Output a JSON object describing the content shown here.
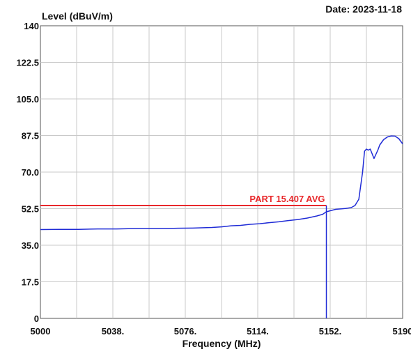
{
  "chart_data": {
    "type": "line",
    "title": "",
    "date_label": "Date: 2023-11-18",
    "ylabel": "Level (dBuV/m)",
    "xlabel": "Frequency (MHz)",
    "xlim": [
      5000,
      5190
    ],
    "ylim": [
      0,
      140
    ],
    "x_ticks": [
      {
        "value": 5000,
        "label": "5000"
      },
      {
        "value": 5038,
        "label": "5038."
      },
      {
        "value": 5076,
        "label": "5076."
      },
      {
        "value": 5114,
        "label": "5114."
      },
      {
        "value": 5152,
        "label": "5152."
      },
      {
        "value": 5190,
        "label": "5190"
      }
    ],
    "x_grid": [
      5000,
      5019,
      5038,
      5057,
      5076,
      5095,
      5114,
      5133,
      5152,
      5171,
      5190
    ],
    "y_ticks": [
      {
        "value": 0,
        "label": "0"
      },
      {
        "value": 17.5,
        "label": "17.5"
      },
      {
        "value": 35.0,
        "label": "35.0"
      },
      {
        "value": 52.5,
        "label": "52.5"
      },
      {
        "value": 70.0,
        "label": "70.0"
      },
      {
        "value": 87.5,
        "label": "87.5"
      },
      {
        "value": 105.0,
        "label": "105.0"
      },
      {
        "value": 122.5,
        "label": "122.5"
      },
      {
        "value": 140,
        "label": "140"
      }
    ],
    "grid": true,
    "limit_line": {
      "label": "PART 15.407 AVG",
      "y": 54,
      "x_range": [
        5000,
        5150
      ],
      "color": "#e8282b"
    },
    "marker_line": {
      "x": 5150,
      "y_range": [
        0,
        54
      ],
      "color": "#1f2bd6"
    },
    "series": [
      {
        "color": "#1f2bd6",
        "x": [
          5000,
          5010,
          5020,
          5030,
          5040,
          5050,
          5060,
          5070,
          5080,
          5090,
          5095,
          5100,
          5105,
          5110,
          5115,
          5120,
          5125,
          5130,
          5135,
          5140,
          5145,
          5148,
          5150,
          5152,
          5155,
          5158,
          5160,
          5163,
          5165,
          5167,
          5169,
          5170,
          5171,
          5172,
          5173,
          5175,
          5177,
          5178,
          5180,
          5182,
          5184,
          5186,
          5188,
          5190
        ],
        "y": [
          42.5,
          42.6,
          42.6,
          42.8,
          42.8,
          43.0,
          43.0,
          43.1,
          43.2,
          43.5,
          43.8,
          44.3,
          44.5,
          45.0,
          45.3,
          45.8,
          46.2,
          46.8,
          47.3,
          48.0,
          49.0,
          49.8,
          51.0,
          51.5,
          52.2,
          52.4,
          52.6,
          53.0,
          54.0,
          57.0,
          70.0,
          80.0,
          81.0,
          80.5,
          81.0,
          76.5,
          80.5,
          83.0,
          85.5,
          86.8,
          87.3,
          87.2,
          86.0,
          83.5
        ]
      }
    ]
  }
}
